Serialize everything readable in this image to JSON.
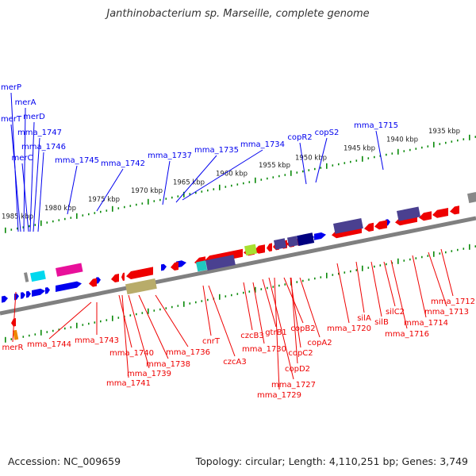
{
  "title": "Janthinobacterium sp. Marseille, complete genome",
  "accession": "Accession: NC_009659",
  "topology": "Topology: circular; Length: 4,110,251 bp; Genes: 3,749",
  "colors": {
    "forward": "#0000ee",
    "reverse": "#ee0000",
    "ruler": "#0a8a0a",
    "backbone": "#808080"
  },
  "ticks": [
    "1985 kbp",
    "1980 kbp",
    "1975 kbp",
    "1970 kbp",
    "1965 kbp",
    "1960 kbp",
    "1955 kbp",
    "1950 kbp",
    "1945 kbp",
    "1940 kbp",
    "1935 kbp"
  ],
  "forward_labels": [
    "merP",
    "merA",
    "merT",
    "merD",
    "mma_1747",
    "mma_1746",
    "merC",
    "mma_1745",
    "mma_1742",
    "mma_1737",
    "mma_1735",
    "mma_1734",
    "copR2",
    "copS2",
    "mma_1715"
  ],
  "reverse_labels": [
    "merR",
    "mma_1744",
    "mma_1743",
    "mma_1740",
    "mma_1741",
    "mma_1739",
    "mma_1738",
    "mma_1736",
    "cnrT",
    "czcA3",
    "czcB3",
    "mma_1730",
    "gtrB1",
    "mma_1727",
    "mma_1729",
    "copB2",
    "copC2",
    "copD2",
    "copA2",
    "mma_1720",
    "silA",
    "silB",
    "silC2",
    "mma_1716",
    "mma_1714",
    "mma_1713",
    "mma_1712"
  ]
}
